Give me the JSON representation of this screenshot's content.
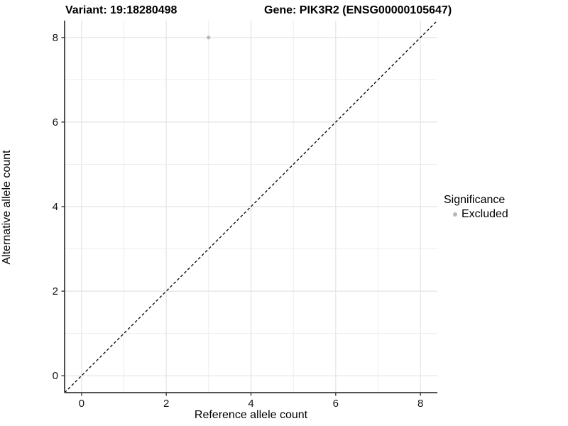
{
  "chart_data": {
    "type": "scatter",
    "title_left": "Variant: 19:18280498",
    "title_right": "Gene: PIK3R2 (ENSG00000105647)",
    "xlabel": "Reference allele count",
    "ylabel": "Alternative allele count",
    "xlim": [
      -0.4,
      8.4
    ],
    "ylim": [
      -0.4,
      8.4
    ],
    "xticks": [
      0,
      2,
      4,
      6,
      8
    ],
    "yticks": [
      0,
      2,
      4,
      6,
      8
    ],
    "grid_at": [
      0,
      1,
      2,
      3,
      4,
      5,
      6,
      7,
      8
    ],
    "grid_on": true,
    "points": [
      {
        "x": 3,
        "y": 8,
        "series": "Excluded"
      }
    ],
    "identity_line": {
      "style": "dashed",
      "from": [
        -0.4,
        -0.4
      ],
      "to": [
        8.4,
        8.4
      ],
      "color": "#000000"
    },
    "legend": {
      "position": "right",
      "title": "Significance",
      "items": [
        {
          "label": "Excluded",
          "color": "#b8b8b8"
        }
      ]
    },
    "colors": {
      "axis_line": "#3c3c3c",
      "major_grid": "#e4e4e4",
      "minor_grid": "#ededed",
      "tick_label": "#111111",
      "point": "#b8b8b8"
    }
  }
}
